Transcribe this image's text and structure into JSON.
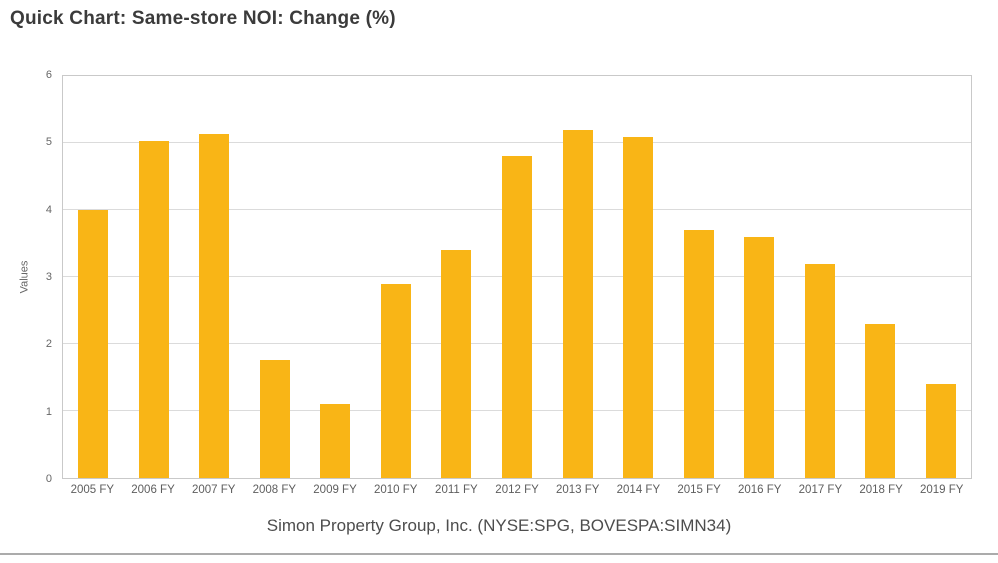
{
  "title": "Quick Chart: Same-store NOI: Change (%)",
  "subtitle": "Simon Property Group, Inc. (NYSE:SPG, BOVESPA:SIMN34)",
  "colors": {
    "bar": "#F9B516",
    "title_text": "#3b3b3b",
    "axis_text": "#666666",
    "gridline": "#dbdbdb",
    "plot_border": "#c9c9c9"
  },
  "chart_data": {
    "type": "bar",
    "title": "Quick Chart: Same-store NOI: Change (%)",
    "subtitle": "Simon Property Group, Inc. (NYSE:SPG, BOVESPA:SIMN34)",
    "xlabel": "",
    "ylabel": "Values",
    "categories": [
      "2005 FY",
      "2006 FY",
      "2007 FY",
      "2008 FY",
      "2009 FY",
      "2010 FY",
      "2011 FY",
      "2012 FY",
      "2013 FY",
      "2014 FY",
      "2015 FY",
      "2016 FY",
      "2017 FY",
      "2018 FY",
      "2019 FY"
    ],
    "values": [
      4.0,
      5.03,
      5.13,
      1.76,
      1.1,
      2.9,
      3.4,
      4.8,
      5.2,
      5.09,
      3.7,
      3.6,
      3.2,
      2.3,
      1.4
    ],
    "ylim": [
      0,
      6
    ],
    "yticks": [
      0,
      1,
      2,
      3,
      4,
      5,
      6
    ],
    "grid": true,
    "legend": "none",
    "bar_color": "#F9B516"
  }
}
